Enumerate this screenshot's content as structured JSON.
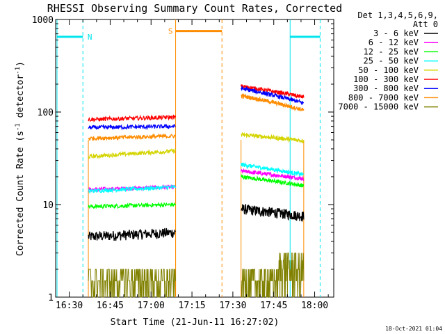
{
  "chart_data": {
    "type": "line",
    "title": "RHESSI Observing Summary Count Rates, Corrected",
    "xlabel": "Start Time (21-Jun-11 16:27:02)",
    "ylabel": "Corrected Count Rate (s",
    "ylabel_sup1": "-1",
    "ylabel_mid": " detector",
    "ylabel_sup2": "-1",
    "ylabel_end": ")",
    "y_scale": "log",
    "ylim": [
      1,
      1000
    ],
    "xlim": [
      "16:25",
      "18:07"
    ],
    "x_ticks": [
      "16:30",
      "16:45",
      "17:00",
      "17:15",
      "17:30",
      "17:45",
      "18:00"
    ],
    "y_ticks": [
      "1",
      "10",
      "100",
      "1000"
    ],
    "legend_title": [
      "Det 1,3,4,5,6,9,",
      "Att 0"
    ],
    "legend_position": "right",
    "timestamp": "18-Oct-2021 01:04",
    "segments": [
      {
        "start": "16:37",
        "end": "17:09"
      },
      {
        "start": "17:33",
        "end": "17:56"
      }
    ],
    "flags": [
      {
        "label": "N",
        "start": "16:25",
        "end": "16:35",
        "level": 650,
        "color": "#00e5ee"
      },
      {
        "label": "S",
        "start": "17:09",
        "end": "17:26",
        "level": 750,
        "color": "#ff8c00"
      },
      {
        "label": "",
        "start": "17:51",
        "end": "18:02",
        "level": 650,
        "color": "#00e5ee"
      }
    ],
    "series": [
      {
        "name": "3 - 6 keV",
        "color": "#000000",
        "seg1": [
          4.5,
          5.0
        ],
        "seg2": [
          9.0,
          7.5
        ]
      },
      {
        "name": "6 - 12 keV",
        "color": "#ff00ff",
        "seg1": [
          14.5,
          15.5
        ],
        "seg2": [
          23.0,
          19.0
        ]
      },
      {
        "name": "12 - 25 keV",
        "color": "#00ff00",
        "seg1": [
          9.5,
          10.0
        ],
        "seg2": [
          20.0,
          16.0
        ]
      },
      {
        "name": "25 - 50 keV",
        "color": "#00ffff",
        "seg1": [
          14.0,
          15.5
        ],
        "seg2": [
          27.0,
          21.0
        ]
      },
      {
        "name": "50 - 100 keV",
        "color": "#d4d400",
        "seg1": [
          33.0,
          38.0
        ],
        "seg2": [
          57.0,
          49.0
        ]
      },
      {
        "name": "100 - 300 keV",
        "color": "#ff0000",
        "seg1": [
          83.0,
          88.0
        ],
        "seg2": [
          190.0,
          145.0
        ]
      },
      {
        "name": "300 - 800 keV",
        "color": "#0000ff",
        "seg1": [
          68.0,
          70.0
        ],
        "seg2": [
          180.0,
          125.0
        ]
      },
      {
        "name": "800 - 7000 keV",
        "color": "#ff8c00",
        "seg1": [
          52.0,
          55.0
        ],
        "seg2": [
          150.0,
          105.0
        ]
      },
      {
        "name": "7000 - 15000 keV",
        "color": "#808000",
        "seg1": [
          1.6,
          1.8
        ],
        "seg2": [
          1.6,
          2.7
        ]
      }
    ]
  }
}
